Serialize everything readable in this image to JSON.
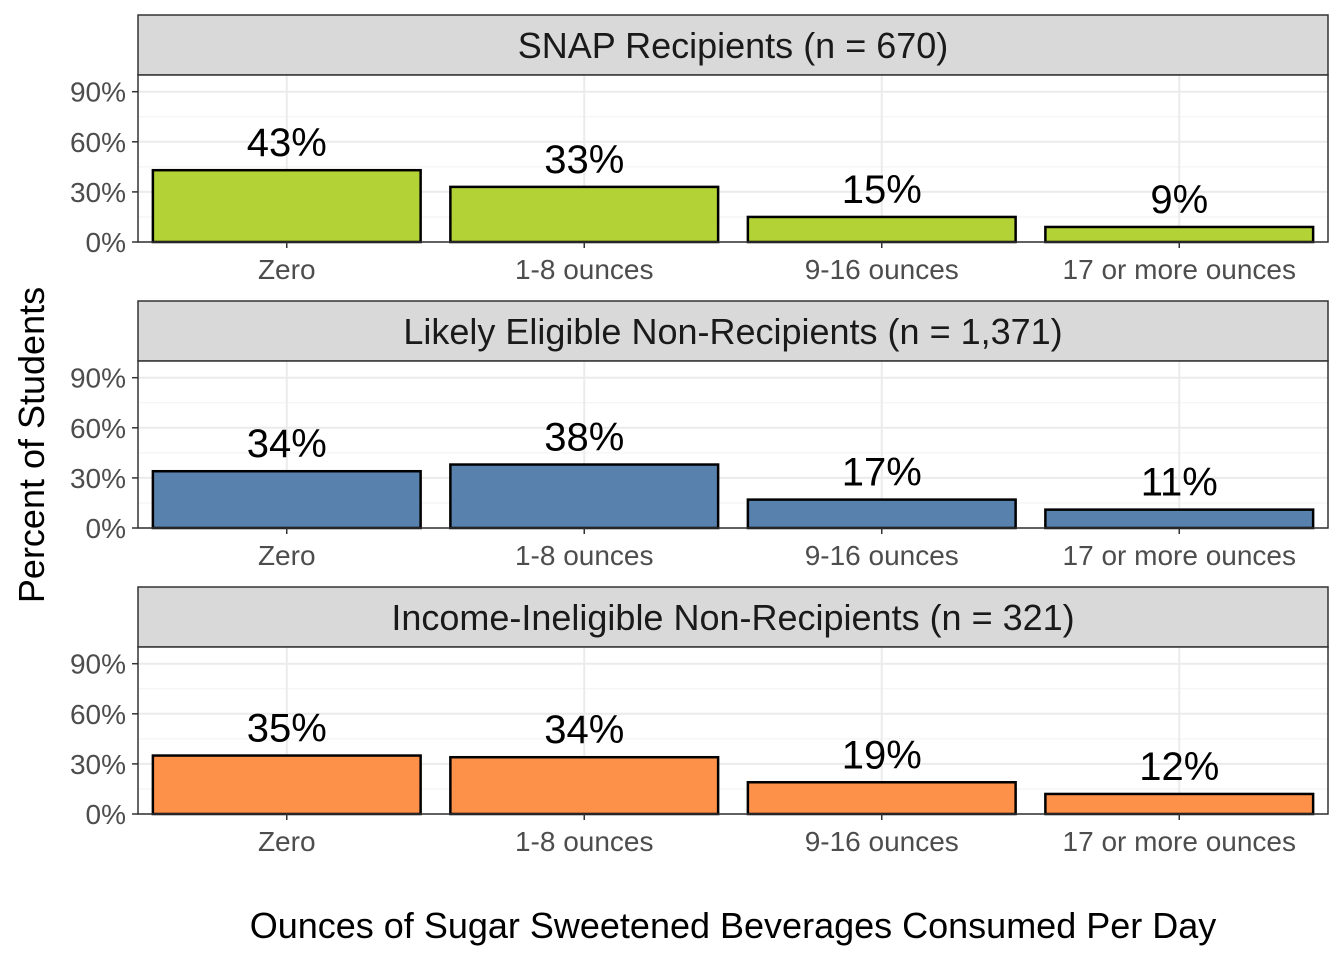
{
  "chart_data": {
    "type": "bar",
    "xlabel": "Ounces of Sugar Sweetened Beverages Consumed Per Day",
    "ylabel": "Percent of Students",
    "categories": [
      "Zero",
      "1-8 ounces",
      "9-16 ounces",
      "17 or more ounces"
    ],
    "ylim": [
      0,
      100
    ],
    "yticks": [
      0,
      30,
      60,
      90
    ],
    "ytick_labels": [
      "0%",
      "30%",
      "60%",
      "90%"
    ],
    "grid": true,
    "legend": "none",
    "panels": [
      {
        "title": "SNAP Recipients (n = 670)",
        "color": "#b2d235",
        "values": [
          43,
          33,
          15,
          9
        ],
        "value_labels": [
          "43%",
          "33%",
          "15%",
          "9%"
        ]
      },
      {
        "title": "Likely Eligible Non-Recipients (n = 1,371)",
        "color": "#5881ad",
        "values": [
          34,
          38,
          17,
          11
        ],
        "value_labels": [
          "34%",
          "38%",
          "17%",
          "11%"
        ]
      },
      {
        "title": "Income-Ineligible Non-Recipients (n = 321)",
        "color": "#fe914a",
        "values": [
          35,
          34,
          19,
          12
        ],
        "value_labels": [
          "35%",
          "34%",
          "19%",
          "12%"
        ]
      }
    ]
  }
}
